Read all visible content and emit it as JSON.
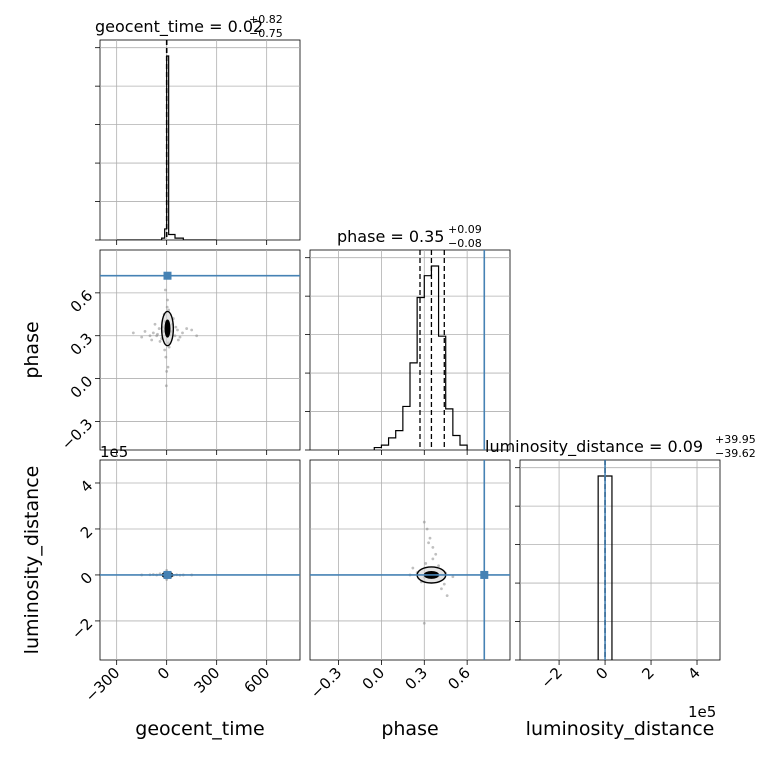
{
  "chart_data": {
    "type": "corner",
    "parameters": [
      {
        "name": "geocent_time",
        "title_main": "geocent_time = 0.02",
        "title_plus": "+0.82",
        "title_minus": "−0.75",
        "range": [
          -400,
          800
        ],
        "ticks": [
          -300,
          0,
          300,
          600
        ],
        "tick_labels": [
          "−300",
          "0",
          "300",
          "600"
        ],
        "truth": null,
        "quantiles": [
          -0.73,
          0.02,
          0.84
        ],
        "hist_edges": [
          -300,
          -250,
          -200,
          -150,
          -100,
          -50,
          -30,
          -12,
          0,
          12,
          50,
          100,
          150,
          200,
          250,
          300
        ],
        "hist_values": [
          0,
          0,
          0,
          0,
          0,
          0,
          0.01,
          0.06,
          1.0,
          0.03,
          0.01,
          0,
          0,
          0,
          0
        ]
      },
      {
        "name": "phase",
        "title_main": "phase = 0.35",
        "title_plus": "+0.09",
        "title_minus": "−0.08",
        "range": [
          -0.5,
          0.9
        ],
        "ticks": [
          -0.3,
          0.0,
          0.3,
          0.6
        ],
        "tick_labels": [
          "−0.3",
          "0.0",
          "0.3",
          "0.6"
        ],
        "truth": 0.72,
        "quantiles": [
          0.27,
          0.35,
          0.44
        ],
        "hist_edges": [
          -0.05,
          0.0,
          0.05,
          0.1,
          0.15,
          0.2,
          0.25,
          0.3,
          0.35,
          0.4,
          0.45,
          0.5,
          0.55,
          0.6
        ],
        "hist_values": [
          0.01,
          0.02,
          0.05,
          0.08,
          0.18,
          0.36,
          0.63,
          0.72,
          0.76,
          0.47,
          0.17,
          0.06,
          0.02
        ]
      },
      {
        "name": "luminosity_distance",
        "title_main": "luminosity_distance = 0.09",
        "title_plus": "+39.95",
        "title_minus": "−39.62",
        "range": [
          -3.7,
          5.0
        ],
        "ticks": [
          -2,
          0,
          2,
          4
        ],
        "tick_labels": [
          "−2",
          "0",
          "2",
          "4"
        ],
        "offset_label": "1e5",
        "truth": 0.0,
        "quantiles": [
          -0.0004,
          0.0,
          0.0004
        ],
        "hist_edges": [
          -0.3,
          0.0,
          0.3
        ],
        "hist_values": [
          1.0,
          1.0
        ]
      }
    ],
    "truth_color": "#4682b4",
    "scatter_2d": [
      {
        "row": 1,
        "col": 0,
        "points": [
          [
            -80,
            0.32
          ],
          [
            -60,
            0.3
          ],
          [
            -45,
            0.35
          ],
          [
            -30,
            0.28
          ],
          [
            -20,
            0.33
          ],
          [
            -10,
            0.4
          ],
          [
            10,
            0.25
          ],
          [
            20,
            0.31
          ],
          [
            35,
            0.38
          ],
          [
            50,
            0.3
          ],
          [
            65,
            0.34
          ],
          [
            80,
            0.29
          ],
          [
            95,
            0.32
          ],
          [
            120,
            0.35
          ],
          [
            -100,
            0.3
          ],
          [
            -130,
            0.33
          ],
          [
            -5,
            0.15
          ],
          [
            5,
            0.55
          ],
          [
            0,
            0.05
          ],
          [
            -2,
            -0.05
          ],
          [
            3,
            0.5
          ],
          [
            -15,
            0.45
          ],
          [
            15,
            0.22
          ],
          [
            -40,
            0.26
          ],
          [
            40,
            0.42
          ],
          [
            -70,
            0.38
          ],
          [
            70,
            0.27
          ],
          [
            -25,
            0.36
          ],
          [
            25,
            0.33
          ],
          [
            -55,
            0.31
          ],
          [
            55,
            0.36
          ],
          [
            -8,
            0.62
          ],
          [
            8,
            0.08
          ],
          [
            -200,
            0.32
          ],
          [
            180,
            0.3
          ],
          [
            -12,
            0.2
          ],
          [
            12,
            0.48
          ],
          [
            -150,
            0.29
          ],
          [
            150,
            0.34
          ],
          [
            -90,
            0.27
          ]
        ],
        "contour": {
          "center": [
            5,
            0.35
          ],
          "rx": 35,
          "ry": 0.12,
          "inner_rx": 15,
          "inner_ry": 0.06
        }
      },
      {
        "row": 2,
        "col": 0,
        "points": [
          [
            -40,
            0.05
          ],
          [
            -20,
            -0.03
          ],
          [
            0,
            0.02
          ],
          [
            20,
            0.04
          ],
          [
            40,
            -0.02
          ],
          [
            60,
            0.01
          ],
          [
            -60,
            0.0
          ],
          [
            80,
            -0.01
          ],
          [
            -80,
            0.02
          ],
          [
            100,
            0.0
          ],
          [
            -100,
            0.01
          ],
          [
            0,
            0.2
          ],
          [
            0,
            -0.2
          ],
          [
            150,
            0.0
          ],
          [
            -150,
            0.0
          ]
        ],
        "contour": {
          "center": [
            5,
            0.0
          ],
          "rx": 30,
          "ry": 0.12,
          "inner_rx": 12,
          "inner_ry": 0.05
        }
      },
      {
        "row": 2,
        "col": 1,
        "points": [
          [
            0.2,
            0.0
          ],
          [
            0.25,
            0.1
          ],
          [
            0.3,
            -0.1
          ],
          [
            0.35,
            0.05
          ],
          [
            0.4,
            -0.05
          ],
          [
            0.45,
            0.08
          ],
          [
            0.5,
            -0.08
          ],
          [
            0.3,
            2.3
          ],
          [
            0.32,
            2.0
          ],
          [
            0.34,
            1.6
          ],
          [
            0.36,
            1.2
          ],
          [
            0.38,
            0.9
          ],
          [
            0.33,
            1.4
          ],
          [
            0.3,
            -2.1
          ],
          [
            0.42,
            -0.6
          ],
          [
            0.46,
            -0.9
          ],
          [
            0.22,
            0.3
          ],
          [
            0.28,
            -0.3
          ],
          [
            0.4,
            0.4
          ],
          [
            0.36,
            0.7
          ],
          [
            0.31,
            0.5
          ],
          [
            0.44,
            -0.4
          ]
        ],
        "contour": {
          "center": [
            0.35,
            0.0
          ],
          "rx": 0.1,
          "ry": 0.35,
          "inner_rx": 0.05,
          "inner_ry": 0.15
        }
      }
    ]
  }
}
